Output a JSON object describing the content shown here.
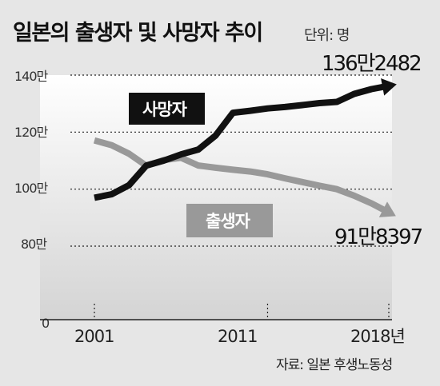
{
  "chart_data": {
    "type": "line",
    "title": "일본의 출생자 및 사망자 추이",
    "unit": "단위: 명",
    "x_tick_labels": [
      "2001",
      "2011",
      "2018년"
    ],
    "x_ticks": [
      2001,
      2011,
      2018
    ],
    "xlim": [
      2001,
      2018
    ],
    "y_tick_labels": [
      "140만",
      "120만",
      "100만",
      "80만",
      "0"
    ],
    "y_ticks": [
      1400000,
      1200000,
      1000000,
      800000
    ],
    "ylim": [
      800000,
      1400000
    ],
    "grid": true,
    "series": [
      {
        "name": "사망자",
        "color": "#111111",
        "x": [
          2001,
          2002,
          2003,
          2004,
          2005,
          2006,
          2007,
          2008,
          2009,
          2010,
          2011,
          2012,
          2013,
          2014,
          2015,
          2016,
          2017,
          2018
        ],
        "values": [
          970000,
          982000,
          1014000,
          1083000,
          1100000,
          1122000,
          1139000,
          1188000,
          1268000,
          1275000,
          1283000,
          1288000,
          1295000,
          1302000,
          1306000,
          1334000,
          1351000,
          1362482
        ],
        "end_label": "136만2482"
      },
      {
        "name": "출생자",
        "color": "#999999",
        "x": [
          2001,
          2002,
          2003,
          2004,
          2005,
          2006,
          2007,
          2008,
          2009,
          2010,
          2011,
          2012,
          2013,
          2014,
          2015,
          2016,
          2017,
          2018
        ],
        "values": [
          1171000,
          1154000,
          1124000,
          1082000,
          1102000,
          1110000,
          1083000,
          1075000,
          1068000,
          1062000,
          1052000,
          1038000,
          1025000,
          1012000,
          1000000,
          977000,
          950000,
          918397
        ],
        "end_label": "91만8397"
      }
    ],
    "source": "자료: 일본 후생노동성"
  }
}
